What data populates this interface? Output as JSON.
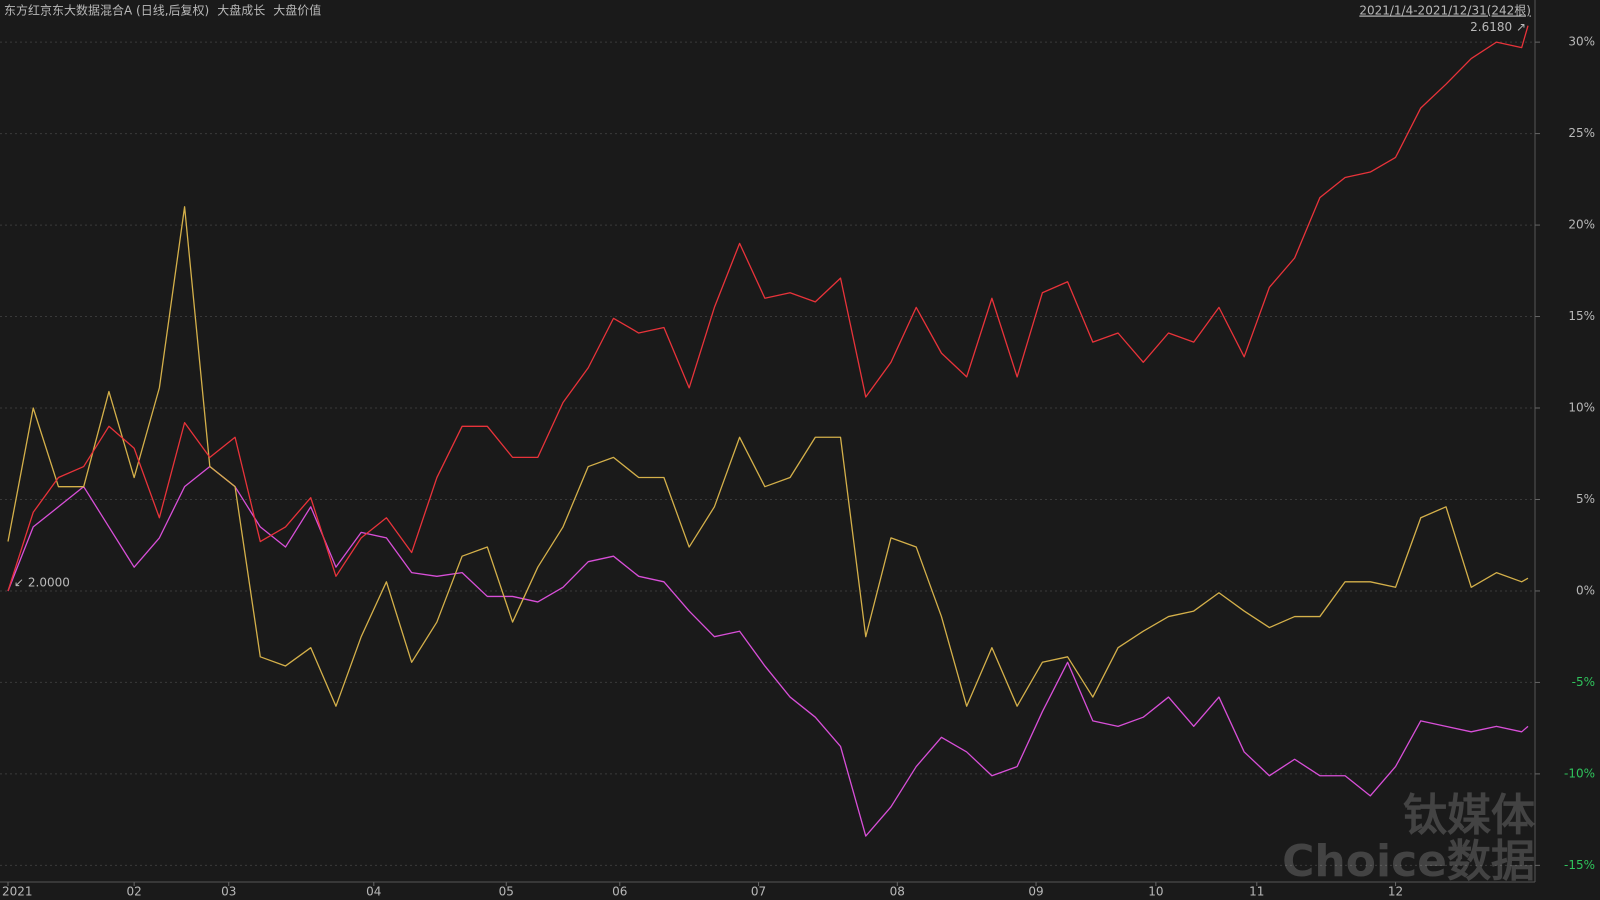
{
  "chart_data": {
    "type": "line",
    "range_label": "2021/1/4-2021/12/31(242根)",
    "annotations": [
      "2.6180 ↗",
      "↙ 2.0000"
    ],
    "watermark": [
      "钛媒体",
      "Choice数据"
    ],
    "x": [
      0,
      4,
      8,
      12,
      16,
      20,
      24,
      28,
      32,
      36,
      40,
      44,
      48,
      52,
      56,
      60,
      64,
      68,
      72,
      76,
      80,
      84,
      88,
      92,
      96,
      100,
      104,
      108,
      112,
      116,
      120,
      124,
      128,
      132,
      136,
      140,
      144,
      148,
      152,
      156,
      160,
      164,
      168,
      172,
      176,
      180,
      184,
      188,
      192,
      196,
      200,
      204,
      208,
      212,
      216,
      220,
      224,
      228,
      232,
      236,
      240,
      241
    ],
    "xlim": [
      0,
      241
    ],
    "xticks": [
      {
        "value": 0,
        "label": "2021"
      },
      {
        "value": 20,
        "label": "02"
      },
      {
        "value": 35,
        "label": "03"
      },
      {
        "value": 58,
        "label": "04"
      },
      {
        "value": 79,
        "label": "05"
      },
      {
        "value": 97,
        "label": "06"
      },
      {
        "value": 119,
        "label": "07"
      },
      {
        "value": 141,
        "label": "08"
      },
      {
        "value": 163,
        "label": "09"
      },
      {
        "value": 182,
        "label": "10"
      },
      {
        "value": 198,
        "label": "11"
      },
      {
        "value": 220,
        "label": "12"
      }
    ],
    "ylim": [
      -15.8,
      31.1
    ],
    "yticks": [
      {
        "value": 30,
        "label": "30%"
      },
      {
        "value": 25,
        "label": "25%"
      },
      {
        "value": 20,
        "label": "20%"
      },
      {
        "value": 15,
        "label": "15%"
      },
      {
        "value": 10,
        "label": "10%"
      },
      {
        "value": 5,
        "label": "5%"
      },
      {
        "value": 0,
        "label": "0%"
      },
      {
        "value": -5,
        "label": "-5%"
      },
      {
        "value": -10,
        "label": "-10%"
      },
      {
        "value": -15,
        "label": "-15%"
      }
    ],
    "grid": true,
    "series": [
      {
        "name": "东方红京东大数据混合A (日线,后复权)",
        "color": "#e8333a",
        "values": [
          0,
          4.3,
          6.2,
          6.8,
          9,
          7.8,
          4,
          9.2,
          7.3,
          8.4,
          2.7,
          3.5,
          5.1,
          0.8,
          2.9,
          4,
          2.1,
          6.2,
          9,
          9,
          7.3,
          7.3,
          10.3,
          12.2,
          14.9,
          14.1,
          14.4,
          11.1,
          15.5,
          19,
          16,
          16.3,
          15.8,
          17.1,
          10.6,
          12.5,
          15.5,
          13,
          11.7,
          16,
          11.7,
          16.3,
          16.9,
          13.6,
          14.1,
          12.5,
          14.1,
          13.6,
          15.5,
          12.8,
          16.6,
          18.2,
          21.5,
          22.6,
          22.9,
          23.7,
          26.4,
          27.7,
          29.1,
          30,
          29.7,
          30.9
        ]
      },
      {
        "name": "大盘成长",
        "color": "#d4b04a",
        "values": [
          2.7,
          10,
          5.7,
          5.7,
          10.9,
          6.2,
          11.1,
          21,
          6.8,
          5.7,
          -3.6,
          -4.1,
          -3.1,
          -6.3,
          -2.5,
          0.5,
          -3.9,
          -1.7,
          1.9,
          2.4,
          -1.7,
          1.3,
          3.5,
          6.8,
          7.3,
          6.2,
          6.2,
          2.4,
          4.6,
          8.4,
          5.7,
          6.2,
          8.4,
          8.4,
          -2.5,
          2.9,
          2.4,
          -1.4,
          -6.3,
          -3.1,
          -6.3,
          -3.9,
          -3.6,
          -5.8,
          -3.1,
          -2.2,
          -1.4,
          -1.1,
          -0.1,
          -1.1,
          -2,
          -1.4,
          -1.4,
          0.5,
          0.5,
          0.2,
          4,
          4.6,
          0.2,
          1,
          0.5,
          0.7
        ]
      },
      {
        "name": "大盘价值",
        "color": "#d84fd8",
        "values": [
          0,
          3.5,
          4.6,
          5.7,
          3.5,
          1.3,
          2.9,
          5.7,
          6.8,
          5.7,
          3.5,
          2.4,
          4.6,
          1.3,
          3.2,
          2.9,
          1,
          0.8,
          1,
          -0.3,
          -0.3,
          -0.6,
          0.2,
          1.6,
          1.9,
          0.8,
          0.5,
          -1.1,
          -2.5,
          -2.2,
          -4.1,
          -5.8,
          -6.9,
          -8.5,
          -13.4,
          -11.8,
          -9.6,
          -8,
          -8.8,
          -10.1,
          -9.6,
          -6.6,
          -3.9,
          -7.1,
          -7.4,
          -6.9,
          -5.8,
          -7.4,
          -5.8,
          -8.8,
          -10.1,
          -9.2,
          -10.1,
          -10.1,
          -11.2,
          -9.6,
          -7.1,
          -7.4,
          -7.7,
          -7.4,
          -7.7,
          -7.4
        ]
      }
    ]
  }
}
